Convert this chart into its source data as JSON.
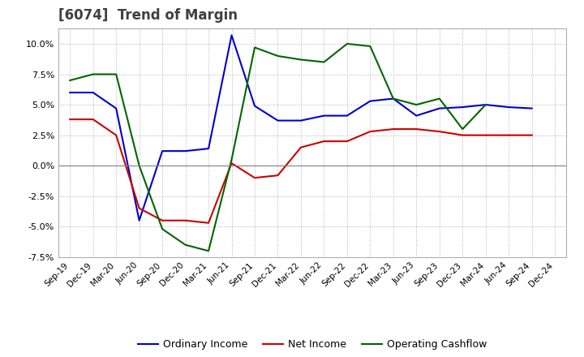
{
  "title": "[6074]  Trend of Margin",
  "title_color": "#404040",
  "background_color": "#ffffff",
  "plot_bg_color": "#ffffff",
  "grid_color": "#b0b0b0",
  "x_labels": [
    "Sep-19",
    "Dec-19",
    "Mar-20",
    "Jun-20",
    "Sep-20",
    "Dec-20",
    "Mar-21",
    "Jun-21",
    "Sep-21",
    "Dec-21",
    "Mar-22",
    "Jun-22",
    "Sep-22",
    "Dec-22",
    "Mar-23",
    "Jun-23",
    "Sep-23",
    "Dec-23",
    "Mar-24",
    "Jun-24",
    "Sep-24",
    "Dec-24"
  ],
  "ordinary_income": [
    6.0,
    6.0,
    4.7,
    -4.5,
    1.2,
    1.2,
    1.4,
    10.7,
    4.9,
    3.7,
    3.7,
    4.1,
    4.1,
    5.3,
    5.5,
    4.1,
    4.7,
    4.8,
    5.0,
    4.8,
    4.7,
    null
  ],
  "net_income": [
    3.8,
    3.8,
    2.5,
    -3.5,
    -4.5,
    -4.5,
    -4.7,
    0.2,
    -1.0,
    -0.8,
    1.5,
    2.0,
    2.0,
    2.8,
    3.0,
    3.0,
    2.8,
    2.5,
    2.5,
    2.5,
    2.5,
    null
  ],
  "operating_cashflow": [
    7.0,
    7.5,
    7.5,
    0.0,
    -5.2,
    -6.5,
    -7.0,
    0.5,
    9.7,
    9.0,
    8.7,
    8.5,
    10.0,
    9.8,
    5.5,
    5.0,
    5.5,
    3.0,
    5.0,
    null,
    null,
    null
  ],
  "ylim": [
    -7.5,
    11.25
  ],
  "yticks": [
    -7.5,
    -5.0,
    -2.5,
    0.0,
    2.5,
    5.0,
    7.5,
    10.0
  ],
  "line_colors": {
    "ordinary_income": "#0000cc",
    "net_income": "#cc0000",
    "operating_cashflow": "#006600"
  },
  "legend_labels": [
    "Ordinary Income",
    "Net Income",
    "Operating Cashflow"
  ]
}
